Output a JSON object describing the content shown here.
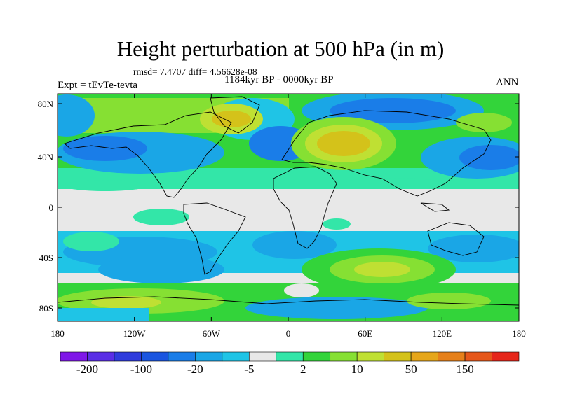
{
  "title": "Height perturbation at 500 hPa (in m)",
  "stats": "rmsd= 7.4707 diff= 4.56628e-08",
  "period": "1184kyr BP - 0000kyr BP",
  "experiment": "Expt = tEvTe-tevta",
  "season": "ANN",
  "map": {
    "lat_ticks": [
      "80N",
      "40N",
      "0",
      "40S",
      "80S"
    ],
    "lon_ticks": [
      "180",
      "120W",
      "60W",
      "0",
      "60E",
      "120E",
      "180"
    ]
  },
  "colorbar": {
    "colors": [
      "#7f17e8",
      "#5a2ee6",
      "#2f3bdc",
      "#1a55e0",
      "#1a7de8",
      "#1aa6e6",
      "#1fc4e6",
      "#e8e8e8",
      "#33e6a8",
      "#33d43a",
      "#86e033",
      "#bfe033",
      "#d4c21a",
      "#e6a61a",
      "#e6801a",
      "#e6571a",
      "#e6261a"
    ],
    "labels": [
      "-200",
      "-100",
      "-20",
      "-5",
      "2",
      "10",
      "50",
      "150"
    ]
  }
}
